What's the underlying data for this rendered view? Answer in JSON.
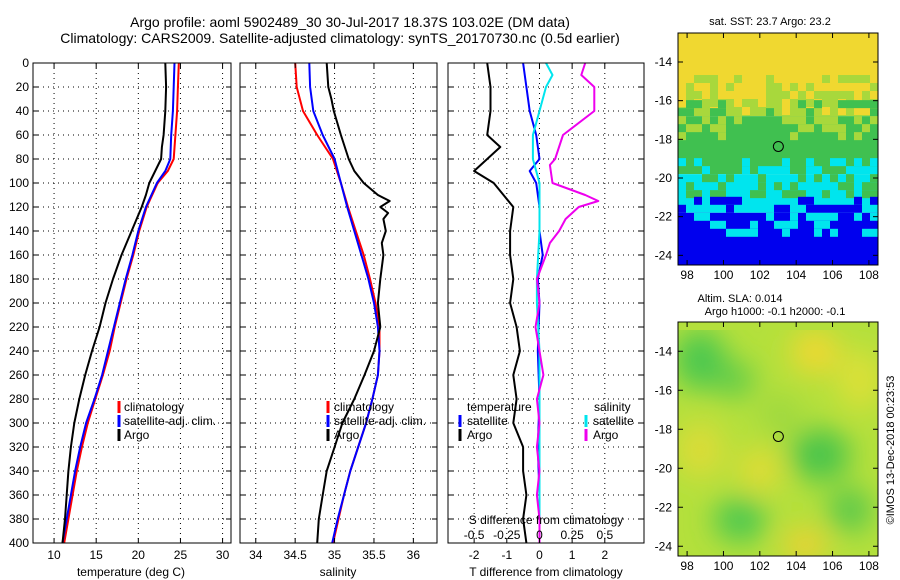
{
  "header": {
    "title_line1": "Argo profile: aoml 5902489_30 30-Jul-2017 18.37S 103.02E (DM data)",
    "title_line2": "Climatology: CARS2009. Satellite-adjusted climatology: synTS_20170730.nc (0.5d earlier)"
  },
  "colors": {
    "climatology": "#ff0000",
    "satellite": "#0000ff",
    "argo": "#000000",
    "t_satellite": "#0000ff",
    "t_argo": "#000000",
    "s_satellite": "#00e5ee",
    "s_argo": "#ee00ee",
    "frame": "#000000"
  },
  "chart_data": [
    {
      "id": "temperature",
      "type": "line",
      "xlabel": "temperature (deg C)",
      "xlim": [
        7.5,
        31.0
      ],
      "xticks": [
        10,
        15,
        20,
        25,
        30
      ],
      "ylim": [
        400,
        0
      ],
      "yticks": [
        0,
        20,
        40,
        60,
        80,
        100,
        120,
        140,
        160,
        180,
        200,
        220,
        240,
        260,
        280,
        300,
        320,
        340,
        360,
        380,
        400
      ],
      "grid": true,
      "legend": [
        "climatology",
        "satellite-adj. clim.",
        "Argo"
      ],
      "series": [
        {
          "name": "climatology",
          "color_key": "climatology",
          "depth": [
            0,
            20,
            40,
            60,
            80,
            90,
            100,
            120,
            140,
            160,
            180,
            200,
            220,
            240,
            260,
            280,
            300,
            320,
            340,
            360,
            380,
            400
          ],
          "values": [
            24.8,
            24.7,
            24.6,
            24.4,
            24.2,
            23.5,
            22.3,
            21.0,
            20.1,
            19.4,
            18.6,
            17.9,
            17.2,
            16.6,
            15.8,
            14.9,
            14.0,
            13.3,
            12.7,
            12.2,
            11.7,
            11.2
          ]
        },
        {
          "name": "satellite-adj. clim.",
          "color_key": "satellite",
          "depth": [
            0,
            20,
            40,
            60,
            80,
            90,
            100,
            120,
            140,
            160,
            180,
            200,
            220,
            240,
            260,
            280,
            300,
            320,
            340,
            360,
            380,
            400
          ],
          "values": [
            24.3,
            24.2,
            24.1,
            23.9,
            23.8,
            23.2,
            22.2,
            20.9,
            20.0,
            19.3,
            18.5,
            17.8,
            17.1,
            16.4,
            15.7,
            14.8,
            13.8,
            13.1,
            12.5,
            12.0,
            11.5,
            11.0
          ]
        },
        {
          "name": "Argo",
          "color_key": "argo",
          "depth": [
            0,
            20,
            40,
            60,
            70,
            80,
            90,
            100,
            110,
            120,
            140,
            160,
            180,
            200,
            220,
            240,
            260,
            280,
            300,
            320,
            340,
            360,
            380,
            400
          ],
          "values": [
            23.2,
            23.3,
            23.2,
            23.0,
            22.8,
            22.7,
            22.0,
            21.3,
            20.9,
            20.4,
            19.2,
            18.0,
            17.0,
            16.1,
            15.4,
            14.5,
            13.7,
            13.0,
            12.4,
            12.0,
            11.7,
            11.5,
            11.3,
            11.0
          ]
        }
      ]
    },
    {
      "id": "salinity",
      "type": "line",
      "xlabel": "salinity",
      "xlim": [
        33.8,
        36.3
      ],
      "xticks": [
        34,
        34.5,
        35,
        35.5,
        36
      ],
      "ylim": [
        400,
        0
      ],
      "grid": true,
      "legend": [
        "climatology",
        "satellite-adj. clim.",
        "Argo"
      ],
      "series": [
        {
          "name": "climatology",
          "color_key": "climatology",
          "depth": [
            0,
            20,
            40,
            60,
            80,
            100,
            120,
            140,
            160,
            180,
            200,
            220,
            240,
            260,
            280,
            300,
            320,
            340,
            360,
            380,
            400
          ],
          "values": [
            34.5,
            34.52,
            34.6,
            34.78,
            34.98,
            35.08,
            35.17,
            35.27,
            35.37,
            35.45,
            35.52,
            35.57,
            35.57,
            35.55,
            35.48,
            35.4,
            35.3,
            35.2,
            35.12,
            35.05,
            34.98
          ]
        },
        {
          "name": "satellite-adj. clim.",
          "color_key": "satellite",
          "depth": [
            0,
            20,
            40,
            60,
            80,
            100,
            120,
            140,
            160,
            180,
            200,
            220,
            240,
            260,
            280,
            300,
            320,
            340,
            360,
            380,
            400
          ],
          "values": [
            34.68,
            34.69,
            34.73,
            34.85,
            35.0,
            35.08,
            35.16,
            35.25,
            35.34,
            35.43,
            35.5,
            35.55,
            35.57,
            35.55,
            35.48,
            35.4,
            35.3,
            35.2,
            35.12,
            35.04,
            34.97
          ]
        },
        {
          "name": "Argo",
          "color_key": "argo",
          "depth": [
            0,
            20,
            30,
            40,
            60,
            80,
            90,
            100,
            110,
            115,
            120,
            125,
            130,
            140,
            150,
            160,
            180,
            200,
            220,
            240,
            260,
            280,
            300,
            320,
            340,
            360,
            380,
            400
          ],
          "values": [
            34.9,
            34.92,
            34.96,
            34.99,
            35.08,
            35.18,
            35.25,
            35.37,
            35.55,
            35.7,
            35.58,
            35.68,
            35.62,
            35.65,
            35.6,
            35.62,
            35.58,
            35.55,
            35.58,
            35.5,
            35.38,
            35.25,
            35.1,
            35.0,
            34.9,
            34.85,
            34.8,
            34.78
          ]
        }
      ]
    },
    {
      "id": "differences",
      "type": "line",
      "xlabel": "T difference from climatology",
      "xlim": [
        -2.8,
        3.2
      ],
      "xticks": [
        -2,
        -1,
        0,
        1,
        2
      ],
      "s_axis_label": "S difference from climatology",
      "s_ticks": [
        -0.5,
        -0.25,
        0,
        0.25,
        0.5
      ],
      "s_tick_labels": [
        "-0.5",
        "-0.25",
        "0",
        "0.25",
        "0.5"
      ],
      "s_scale": 4,
      "ylim": [
        400,
        0
      ],
      "grid": true,
      "legend_temperature_title": "temperature",
      "legend_salinity_title": "salinity",
      "legend_temperature": [
        "satellite",
        "Argo"
      ],
      "legend_salinity": [
        "satellite",
        "Argo"
      ],
      "series": [
        {
          "name": "T satellite",
          "color_key": "t_satellite",
          "depth": [
            0,
            20,
            40,
            60,
            80,
            90,
            100,
            120,
            140,
            160,
            180,
            200,
            240,
            280,
            320,
            360,
            400
          ],
          "values": [
            -0.5,
            -0.4,
            -0.3,
            -0.1,
            0.0,
            -0.3,
            -0.1,
            0.0,
            0.0,
            0.1,
            -0.05,
            0.0,
            -0.05,
            0.0,
            -0.05,
            0.0,
            0.0
          ]
        },
        {
          "name": "T Argo",
          "color_key": "t_argo",
          "depth": [
            0,
            20,
            40,
            60,
            70,
            80,
            90,
            100,
            110,
            120,
            140,
            160,
            180,
            200,
            220,
            240,
            260,
            280,
            300,
            320,
            340,
            360,
            380,
            400
          ],
          "values": [
            -1.6,
            -1.5,
            -1.5,
            -1.6,
            -1.2,
            -1.6,
            -2.0,
            -1.4,
            -1.1,
            -0.8,
            -0.9,
            -0.9,
            -0.8,
            -0.9,
            -0.7,
            -0.6,
            -0.8,
            -0.7,
            -0.8,
            -0.5,
            -0.5,
            -0.4,
            -0.5,
            -0.4
          ]
        },
        {
          "name": "S satellite",
          "color_key": "s_satellite",
          "depth": [
            0,
            10,
            20,
            40,
            60,
            80,
            100,
            140,
            180,
            200,
            240,
            280,
            320,
            360,
            400
          ],
          "values": [
            0.05,
            0.1,
            0.05,
            0.0,
            -0.05,
            -0.05,
            0.0,
            0.0,
            -0.02,
            -0.02,
            0.0,
            0.0,
            0.0,
            0.0,
            0.0
          ]
        },
        {
          "name": "S Argo",
          "color_key": "s_argo",
          "depth": [
            0,
            10,
            20,
            40,
            60,
            80,
            85,
            100,
            110,
            115,
            120,
            130,
            140,
            150,
            160,
            180,
            200,
            220,
            240,
            260,
            280,
            300,
            320,
            340,
            360,
            380,
            400
          ],
          "values": [
            0.35,
            0.32,
            0.42,
            0.42,
            0.18,
            0.12,
            0.08,
            0.1,
            0.35,
            0.45,
            0.3,
            0.2,
            0.15,
            0.08,
            0.05,
            -0.02,
            0.0,
            -0.03,
            0.0,
            0.03,
            -0.02,
            0.0,
            -0.02,
            0.0,
            -0.02,
            0.0,
            0.0
          ]
        }
      ]
    },
    {
      "id": "sst_map",
      "type": "heatmap",
      "title": "sat. SST: 23.7 Argo: 23.2",
      "xticks": [
        98,
        100,
        102,
        104,
        106,
        108
      ],
      "yticks": [
        -14,
        -16,
        -18,
        -20,
        -22,
        -24
      ],
      "xlim": [
        97.5,
        108.5
      ],
      "ylim": [
        -24.5,
        -12.5
      ],
      "float_position": {
        "lon": 103.02,
        "lat": -18.37
      },
      "bands": [
        {
          "lat_top": -12.5,
          "lat_bottom": -15.5,
          "color": "#f0d830"
        },
        {
          "lat_top": -15.5,
          "lat_bottom": -16.8,
          "color": "#a8d83c"
        },
        {
          "lat_top": -16.8,
          "lat_bottom": -19.8,
          "color": "#40c050"
        },
        {
          "lat_top": -19.8,
          "lat_bottom": -21.8,
          "color": "#00e5ee"
        },
        {
          "lat_top": -21.8,
          "lat_bottom": -24.5,
          "color": "#0000ee"
        }
      ]
    },
    {
      "id": "sla_map",
      "type": "heatmap",
      "title_line1": "Altim. SLA: 0.014",
      "title_line2": "Argo h1000: -0.1 h2000: -0.1",
      "xticks": [
        98,
        100,
        102,
        104,
        106,
        108
      ],
      "yticks": [
        -14,
        -16,
        -18,
        -20,
        -22,
        -24
      ],
      "xlim": [
        97.5,
        108.5
      ],
      "ylim": [
        -24.5,
        -12.5
      ],
      "float_position": {
        "lon": 103.02,
        "lat": -18.37
      }
    }
  ],
  "footer": {
    "credit": "©IMOS 13-Dec-2018 00:23:53"
  }
}
